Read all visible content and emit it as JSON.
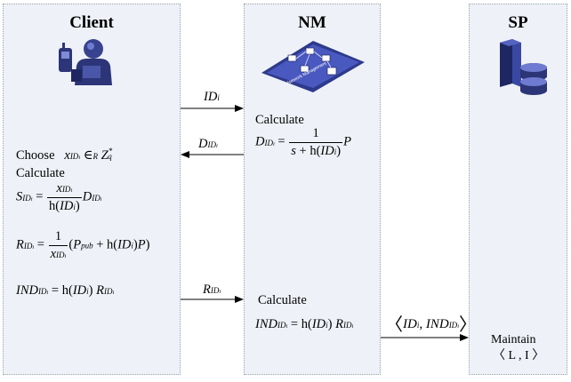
{
  "lanes": {
    "client": {
      "title": "Client",
      "icon": "user-device-icon"
    },
    "nm": {
      "title": "NM",
      "icon": "network-management-icon"
    },
    "sp": {
      "title": "SP",
      "icon": "server-database-icon"
    }
  },
  "messages": [
    {
      "label": "ID_i",
      "from": "Client",
      "to": "NM"
    },
    {
      "label": "D_IDi",
      "from": "NM",
      "to": "Client"
    },
    {
      "label": "R_IDi",
      "from": "Client",
      "to": "NM"
    },
    {
      "label": "<ID_i, IND_IDi>",
      "from": "NM",
      "to": "SP"
    }
  ],
  "client_steps": {
    "choose_word": "Choose",
    "calculate_word": "Calculate"
  },
  "nm_steps": {
    "calculate_word_1": "Calculate",
    "calculate_word_2": "Calculate"
  },
  "sp_steps": {
    "maintain_word": "Maintain",
    "maintain_value": "〈 L , I 〉"
  },
  "colors": {
    "lane_fill": "#eef2f8",
    "lane_border": "#9aa3ad"
  }
}
